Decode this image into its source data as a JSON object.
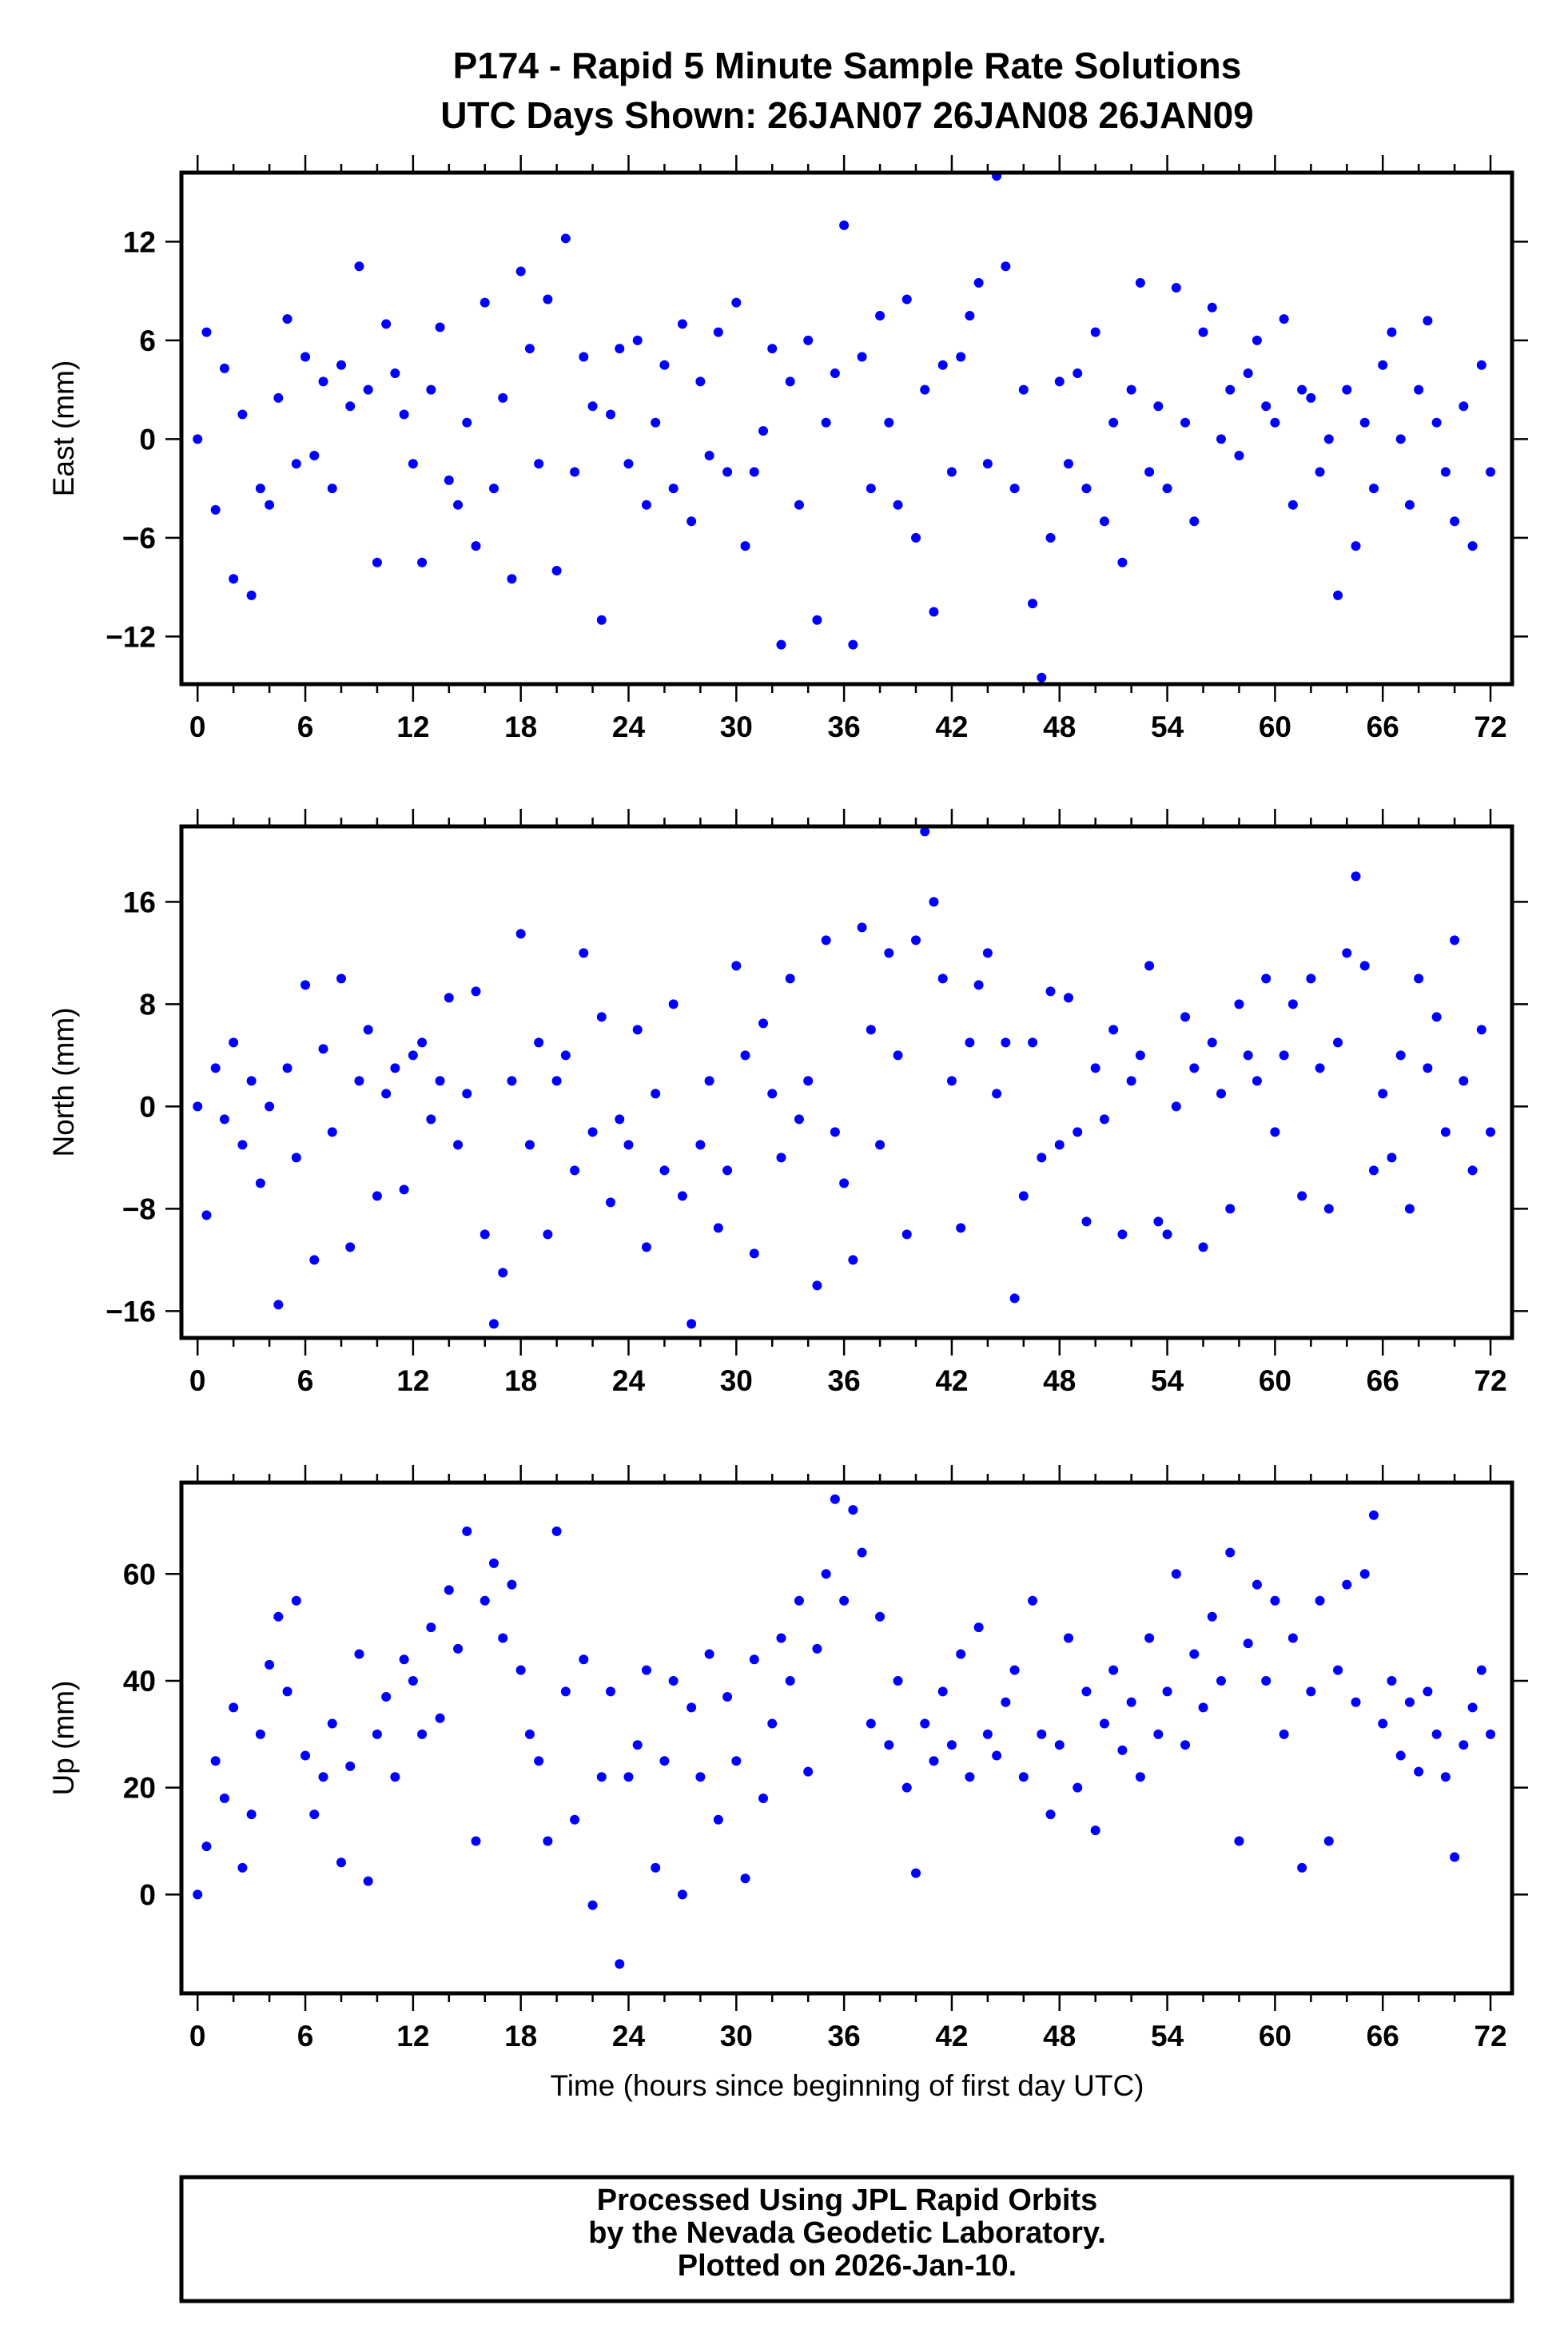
{
  "title_line1": "P174 - Rapid 5 Minute Sample Rate Solutions",
  "title_line2": "UTC Days Shown:  26JAN07 26JAN08 26JAN09",
  "footer": {
    "line1": "Processed Using JPL Rapid Orbits",
    "line2": "by the Nevada Geodetic Laboratory.",
    "line3": "Plotted on 2026-Jan-10."
  },
  "colors": {
    "points": "#0000ff",
    "axes": "#000000"
  },
  "chart_data": [
    {
      "type": "scatter",
      "ylabel": "East (mm)",
      "xlabel": "",
      "xlim": [
        -0.9,
        73.2
      ],
      "ylim": [
        -14.9,
        16.2
      ],
      "xticks": [
        0,
        6,
        12,
        18,
        24,
        30,
        36,
        42,
        48,
        54,
        60,
        66,
        72
      ],
      "yticks": [
        -12,
        -6,
        0,
        6,
        12
      ],
      "x_start": 0,
      "x_step": 0.5,
      "y": [
        0,
        6.5,
        -4.3,
        4.3,
        -8.5,
        1.5,
        -9.5,
        -3,
        -4,
        2.5,
        7.3,
        -1.5,
        5,
        -1,
        3.5,
        -3,
        4.5,
        2,
        10.5,
        3,
        -7.5,
        7,
        4,
        1.5,
        -1.5,
        -7.5,
        3,
        6.8,
        -2.5,
        -4,
        1,
        -6.5,
        8.3,
        -3,
        2.5,
        -8.5,
        10.2,
        5.5,
        -1.5,
        8.5,
        -8,
        12.2,
        -2,
        5,
        2,
        -11,
        1.5,
        5.5,
        -1.5,
        6,
        -4,
        1,
        4.5,
        -3,
        7,
        -5,
        3.5,
        -1,
        6.5,
        -2,
        8.3,
        -6.5,
        -2,
        0.5,
        5.5,
        -12.5,
        3.5,
        -4,
        6,
        -11,
        1,
        4,
        13,
        -12.5,
        5,
        -3,
        7.5,
        1,
        -4,
        8.5,
        -6,
        3,
        -10.5,
        4.5,
        -2,
        5,
        7.5,
        9.5,
        -1.5,
        16,
        10.5,
        -3,
        3,
        -10,
        -14.5,
        -6,
        3.5,
        -1.5,
        4,
        -3,
        6.5,
        -5,
        1,
        -7.5,
        3,
        9.5,
        -2,
        2,
        -3,
        9.2,
        1,
        -5,
        6.5,
        8,
        0,
        3,
        -1,
        4,
        6,
        2,
        1,
        7.3,
        -4,
        3,
        2.5,
        -2,
        0,
        -9.5,
        3,
        -6.5,
        1,
        -3,
        4.5,
        6.5,
        0,
        -4,
        3,
        7.2,
        1,
        -2,
        -5,
        2,
        -6.5,
        4.5,
        -2
      ]
    },
    {
      "type": "scatter",
      "ylabel": "North (mm)",
      "xlabel": "",
      "xlim": [
        -0.9,
        73.2
      ],
      "ylim": [
        -18.1,
        21.9
      ],
      "xticks": [
        0,
        6,
        12,
        18,
        24,
        30,
        36,
        42,
        48,
        54,
        60,
        66,
        72
      ],
      "yticks": [
        -16,
        -8,
        0,
        8,
        16
      ],
      "x_start": 0,
      "x_step": 0.5,
      "y": [
        0,
        -8.5,
        3,
        -1,
        5,
        -3,
        2,
        -6,
        0,
        -15.5,
        3,
        -4,
        9.5,
        -12,
        4.5,
        -2,
        10,
        -11,
        2,
        6,
        -7,
        1,
        3,
        -6.5,
        4,
        5,
        -1,
        2,
        8.5,
        -3,
        1,
        9,
        -10,
        -17,
        -13,
        2,
        13.5,
        -3,
        5,
        -10,
        2,
        4,
        -5,
        12,
        -2,
        7,
        -7.5,
        -1,
        -3,
        6,
        -11,
        1,
        -5,
        8,
        -7,
        -17,
        -3,
        2,
        -9.5,
        -5,
        11,
        4,
        -11.5,
        6.5,
        1,
        -4,
        10,
        -1,
        2,
        -14,
        13,
        -2,
        -6,
        -12,
        14,
        6,
        -3,
        12,
        4,
        -10,
        13,
        21.5,
        16,
        10,
        2,
        -9.5,
        5,
        9.5,
        12,
        1,
        5,
        -15,
        -7,
        5,
        -4,
        9,
        -3,
        8.5,
        -2,
        -9,
        3,
        -1,
        6,
        -10,
        2,
        4,
        11,
        -9,
        -10,
        0,
        7,
        3,
        -11,
        5,
        1,
        -8,
        8,
        4,
        2,
        10,
        -2,
        4,
        8,
        -7,
        10,
        3,
        -8,
        5,
        12,
        18,
        11,
        -5,
        1,
        -4,
        4,
        -8,
        10,
        3,
        7,
        -2,
        13,
        2,
        -5,
        6,
        -2
      ]
    },
    {
      "type": "scatter",
      "ylabel": "Up (mm)",
      "xlabel": "Time (hours since beginning of first day UTC)",
      "xlim": [
        -0.9,
        73.2
      ],
      "ylim": [
        -18.5,
        77.1
      ],
      "xticks": [
        0,
        6,
        12,
        18,
        24,
        30,
        36,
        42,
        48,
        54,
        60,
        66,
        72
      ],
      "yticks": [
        0,
        20,
        40,
        60
      ],
      "x_start": 0,
      "x_step": 0.5,
      "y": [
        0,
        9,
        25,
        18,
        35,
        5,
        15,
        30,
        43,
        52,
        38,
        55,
        26,
        15,
        22,
        32,
        6,
        24,
        45,
        2.5,
        30,
        37,
        22,
        44,
        40,
        30,
        50,
        33,
        57,
        46,
        68,
        10,
        55,
        62,
        48,
        58,
        42,
        30,
        25,
        10,
        68,
        38,
        14,
        44,
        -2,
        22,
        38,
        -13,
        22,
        28,
        42,
        5,
        25,
        40,
        0,
        35,
        22,
        45,
        14,
        37,
        25,
        3,
        44,
        18,
        32,
        48,
        40,
        55,
        23,
        46,
        60,
        74,
        55,
        72,
        64,
        32,
        52,
        28,
        40,
        20,
        4,
        32,
        25,
        38,
        28,
        45,
        22,
        50,
        30,
        26,
        36,
        42,
        22,
        55,
        30,
        15,
        28,
        48,
        20,
        38,
        12,
        32,
        42,
        27,
        36,
        22,
        48,
        30,
        38,
        60,
        28,
        45,
        35,
        52,
        40,
        64,
        10,
        47,
        58,
        40,
        55,
        30,
        48,
        5,
        38,
        55,
        10,
        42,
        58,
        36,
        60,
        71,
        32,
        40,
        26,
        36,
        23,
        38,
        30,
        22,
        7,
        28,
        35,
        42,
        30
      ]
    }
  ]
}
